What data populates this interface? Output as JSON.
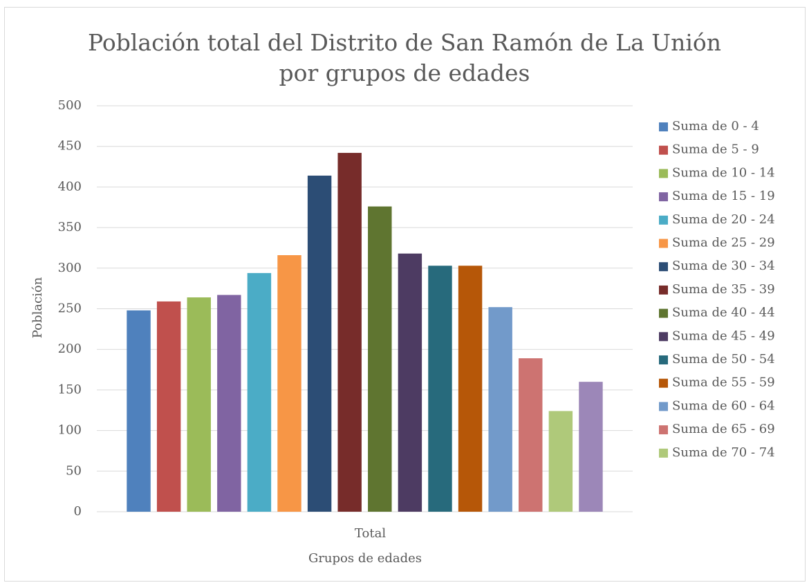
{
  "chart_data": {
    "type": "bar",
    "title": "Población total del Distrito de San Ramón de La Unión por grupos de edades",
    "x_label": "Grupos de edades",
    "y_label": "Población",
    "categories": [
      "Total"
    ],
    "series": [
      {
        "name": "Suma de 0 - 4",
        "color": "#4f81bd",
        "values": [
          248
        ]
      },
      {
        "name": "Suma de 5 - 9",
        "color": "#c0504d",
        "values": [
          259
        ]
      },
      {
        "name": "Suma de 10 - 14",
        "color": "#9bbb59",
        "values": [
          264
        ]
      },
      {
        "name": "Suma de 15 - 19",
        "color": "#8064a2",
        "values": [
          267
        ]
      },
      {
        "name": "Suma de 20 - 24",
        "color": "#4bacc6",
        "values": [
          294
        ]
      },
      {
        "name": "Suma de 25 - 29",
        "color": "#f79646",
        "values": [
          316
        ]
      },
      {
        "name": "Suma de 30 - 34",
        "color": "#2c4d75",
        "values": [
          414
        ]
      },
      {
        "name": "Suma de 35 - 39",
        "color": "#772c2a",
        "values": [
          442
        ]
      },
      {
        "name": "Suma de 40 - 44",
        "color": "#5f7530",
        "values": [
          376
        ]
      },
      {
        "name": "Suma de 45 - 49",
        "color": "#4d3b62",
        "values": [
          318
        ]
      },
      {
        "name": "Suma de 50 - 54",
        "color": "#276a7c",
        "values": [
          303
        ]
      },
      {
        "name": "Suma de 55 - 59",
        "color": "#b65708",
        "values": [
          303
        ]
      },
      {
        "name": "Suma de 60 - 64",
        "color": "#729aca",
        "values": [
          252
        ]
      },
      {
        "name": "Suma de 65 - 69",
        "color": "#cd7371",
        "values": [
          189
        ]
      },
      {
        "name": "Suma de 70 - 74",
        "color": "#afc97a",
        "values": [
          124
        ]
      },
      {
        "name": null,
        "color": "#9c87b8",
        "values": [
          160
        ]
      }
    ],
    "ylim": [
      0,
      500
    ],
    "yticks": [
      0,
      50,
      100,
      150,
      200,
      250,
      300,
      350,
      400,
      450,
      500
    ],
    "grid": true,
    "legend": "right"
  }
}
